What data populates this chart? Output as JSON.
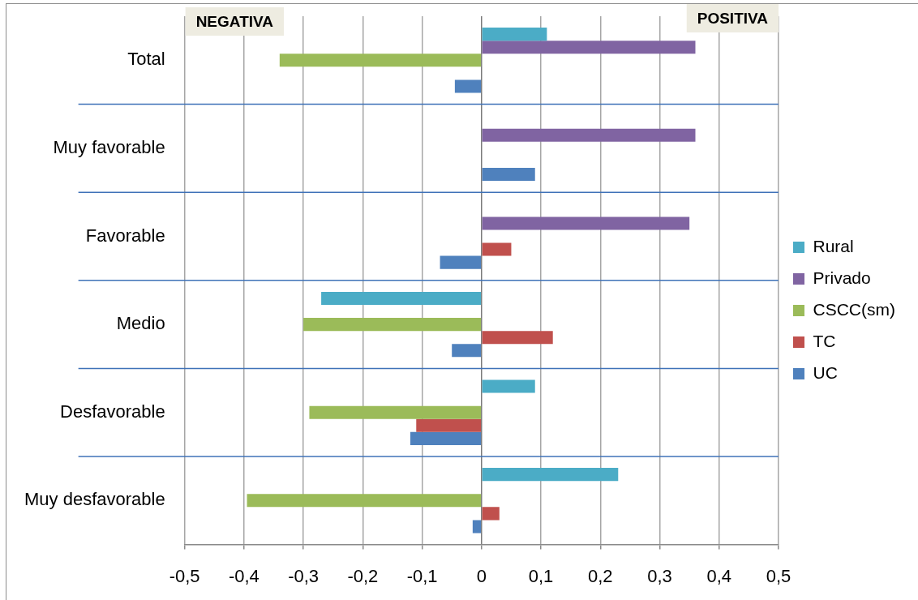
{
  "chart_data": {
    "type": "bar",
    "orientation": "horizontal",
    "categories": [
      "Total",
      "Muy favorable",
      "Favorable",
      "Medio",
      "Desfavorable",
      "Muy desfavorable"
    ],
    "series": [
      {
        "name": "Rural",
        "color": "#4bacc6",
        "values": [
          0.11,
          null,
          null,
          -0.27,
          0.09,
          0.23
        ]
      },
      {
        "name": "Privado",
        "color": "#8064a2",
        "values": [
          0.36,
          0.36,
          0.35,
          null,
          null,
          null
        ]
      },
      {
        "name": "CSCC(sm)",
        "color": "#9bbb59",
        "values": [
          -0.34,
          null,
          null,
          -0.3,
          -0.29,
          -0.395
        ]
      },
      {
        "name": "TC",
        "color": "#c0504d",
        "values": [
          null,
          null,
          0.05,
          0.12,
          -0.11,
          0.03
        ]
      },
      {
        "name": "UC",
        "color": "#4f81bd",
        "values": [
          -0.045,
          0.09,
          -0.07,
          -0.05,
          -0.12,
          -0.015
        ]
      }
    ],
    "xlim": [
      -0.5,
      0.5
    ],
    "xticks": [
      {
        "value": -0.5,
        "label": "-0,5"
      },
      {
        "value": -0.4,
        "label": "-0,4"
      },
      {
        "value": -0.3,
        "label": "-0,3"
      },
      {
        "value": -0.2,
        "label": "-0,2"
      },
      {
        "value": -0.1,
        "label": "-0,1"
      },
      0,
      {
        "value": 0.1,
        "label": "0,1"
      },
      {
        "value": 0.2,
        "label": "0,2"
      },
      {
        "value": 0.3,
        "label": "0,3"
      },
      {
        "value": 0.4,
        "label": "0,4"
      },
      {
        "value": 0.5,
        "label": "0,5"
      }
    ],
    "grid": true,
    "legend": "right",
    "annotations": [
      "NEGATIVA",
      "POSITIVA"
    ]
  }
}
